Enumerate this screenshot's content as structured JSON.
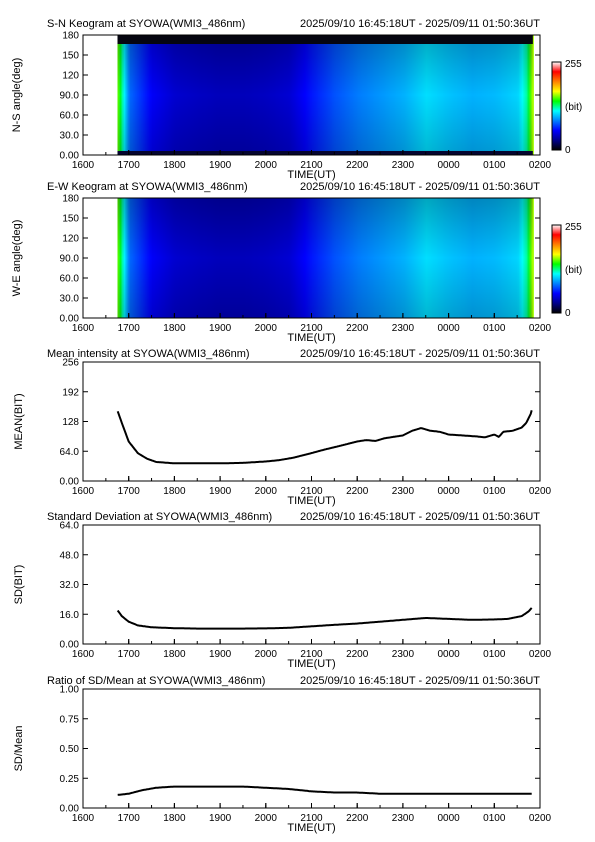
{
  "time_range_text": "2025/09/10 16:45:18UT - 2025/09/11 01:50:36UT",
  "x_axis": {
    "label": "TIME(UT)",
    "ticks": [
      "1600",
      "1700",
      "1800",
      "1900",
      "2000",
      "2100",
      "2200",
      "2300",
      "0000",
      "0100",
      "0200"
    ],
    "range_hours": [
      16.0,
      26.0
    ],
    "data_start_hours": 16.755,
    "data_end_hours": 25.843
  },
  "colorbar": {
    "min_label": "0",
    "max_label": "255",
    "unit_label": "(bit)",
    "colors": [
      "#000000",
      "#00008b",
      "#0000ff",
      "#0080ff",
      "#00ffff",
      "#00ff00",
      "#ffff00",
      "#ff8000",
      "#ff0000",
      "#ffffff"
    ]
  },
  "keograms": [
    {
      "title": "S-N Keogram at SYOWA(WMI3_486nm)",
      "ylabel": "N-S angle(deg)",
      "yticks": [
        "0.00",
        "30.0",
        "60.0",
        "90.0",
        "120",
        "150",
        "180"
      ],
      "yrange": [
        0,
        180
      ],
      "dark_top_band": true
    },
    {
      "title": "E-W Keogram at SYOWA(WMI3_486nm)",
      "ylabel": "W-E angle(deg)",
      "yticks": [
        "0.00",
        "30.0",
        "60.0",
        "90.0",
        "120",
        "150",
        "180"
      ],
      "yrange": [
        0,
        180
      ],
      "dark_top_band": false
    }
  ],
  "line_panels": [
    {
      "title": "Mean intensity at SYOWA(WMI3_486nm)",
      "ylabel": "MEAN(BIT)",
      "yticks": [
        "0.00",
        "64.0",
        "128",
        "192",
        "256"
      ],
      "yrange": [
        0,
        256
      ]
    },
    {
      "title": "Standard Deviation at SYOWA(WMI3_486nm)",
      "ylabel": "SD(BIT)",
      "yticks": [
        "0.00",
        "16.0",
        "32.0",
        "48.0",
        "64.0"
      ],
      "yrange": [
        0,
        64
      ]
    },
    {
      "title": "Ratio of SD/Mean at SYOWA(WMI3_486nm)",
      "ylabel": "SD/Mean",
      "yticks": [
        "0.00",
        "0.25",
        "0.50",
        "0.75",
        "1.00"
      ],
      "yrange": [
        0,
        1
      ]
    }
  ],
  "chart_data": [
    {
      "type": "heatmap",
      "title": "S-N Keogram at SYOWA(WMI3_486nm)",
      "xlabel": "TIME(UT)",
      "ylabel": "N-S angle(deg)",
      "xlim_hours": [
        16.0,
        26.0
      ],
      "ylim": [
        0,
        180
      ],
      "color_scale": [
        0,
        255
      ],
      "x_hours": [
        16.76,
        16.85,
        17.0,
        17.5,
        18.0,
        18.5,
        19.0,
        19.5,
        20.0,
        20.5,
        21.0,
        21.5,
        22.0,
        22.5,
        23.0,
        23.5,
        24.0,
        24.5,
        25.0,
        25.5,
        25.7,
        25.8
      ],
      "intensity_bit": [
        150,
        120,
        80,
        55,
        45,
        42,
        40,
        40,
        42,
        46,
        62,
        75,
        84,
        90,
        96,
        106,
        100,
        96,
        98,
        104,
        125,
        160
      ]
    },
    {
      "type": "heatmap",
      "title": "E-W Keogram at SYOWA(WMI3_486nm)",
      "xlabel": "TIME(UT)",
      "ylabel": "W-E angle(deg)",
      "xlim_hours": [
        16.0,
        26.0
      ],
      "ylim": [
        0,
        180
      ],
      "color_scale": [
        0,
        255
      ],
      "x_hours": [
        16.76,
        16.85,
        17.0,
        17.5,
        18.0,
        18.5,
        19.0,
        19.5,
        20.0,
        20.5,
        21.0,
        21.5,
        22.0,
        22.5,
        23.0,
        23.5,
        24.0,
        24.5,
        25.0,
        25.5,
        25.7,
        25.8
      ],
      "intensity_bit": [
        150,
        120,
        80,
        55,
        45,
        42,
        40,
        40,
        42,
        46,
        62,
        75,
        84,
        90,
        96,
        106,
        100,
        96,
        98,
        104,
        125,
        160
      ]
    },
    {
      "type": "line",
      "title": "Mean intensity at SYOWA(WMI3_486nm)",
      "xlabel": "TIME(UT)",
      "ylabel": "MEAN(BIT)",
      "xlim_hours": [
        16.0,
        26.0
      ],
      "ylim": [
        0,
        256
      ],
      "x_hours": [
        16.76,
        16.85,
        17.0,
        17.2,
        17.4,
        17.6,
        18.0,
        18.5,
        19.0,
        19.5,
        20.0,
        20.3,
        20.6,
        21.0,
        21.3,
        21.6,
        22.0,
        22.2,
        22.4,
        22.6,
        22.8,
        23.0,
        23.2,
        23.4,
        23.6,
        23.8,
        24.0,
        24.3,
        24.6,
        24.8,
        25.0,
        25.1,
        25.2,
        25.4,
        25.6,
        25.7,
        25.8,
        25.84
      ],
      "values": [
        150,
        125,
        85,
        60,
        48,
        41,
        38,
        38,
        38,
        39,
        42,
        45,
        50,
        60,
        68,
        75,
        85,
        88,
        86,
        92,
        95,
        98,
        108,
        114,
        108,
        106,
        100,
        98,
        96,
        94,
        100,
        95,
        106,
        108,
        115,
        125,
        145,
        160
      ]
    },
    {
      "type": "line",
      "title": "Standard Deviation at SYOWA(WMI3_486nm)",
      "xlabel": "TIME(UT)",
      "ylabel": "SD(BIT)",
      "xlim_hours": [
        16.0,
        26.0
      ],
      "ylim": [
        0,
        64
      ],
      "x_hours": [
        16.76,
        16.85,
        17.0,
        17.2,
        17.5,
        18.0,
        18.5,
        19.0,
        19.5,
        20.0,
        20.5,
        21.0,
        21.5,
        22.0,
        22.5,
        23.0,
        23.5,
        24.0,
        24.5,
        25.0,
        25.3,
        25.6,
        25.75,
        25.84
      ],
      "values": [
        18,
        15,
        12,
        10,
        9,
        8.5,
        8.3,
        8.3,
        8.3,
        8.4,
        8.7,
        9.5,
        10.3,
        11,
        12,
        13,
        14,
        13.5,
        13,
        13.2,
        13.5,
        15,
        17.5,
        20
      ]
    },
    {
      "type": "line",
      "title": "Ratio of SD/Mean at SYOWA(WMI3_486nm)",
      "xlabel": "TIME(UT)",
      "ylabel": "SD/Mean",
      "xlim_hours": [
        16.0,
        26.0
      ],
      "ylim": [
        0,
        1
      ],
      "x_hours": [
        16.76,
        17.0,
        17.3,
        17.6,
        18.0,
        18.5,
        19.0,
        19.5,
        20.0,
        20.5,
        21.0,
        21.5,
        22.0,
        22.5,
        23.0,
        23.5,
        24.0,
        24.5,
        25.0,
        25.5,
        25.84
      ],
      "values": [
        0.11,
        0.12,
        0.15,
        0.17,
        0.18,
        0.18,
        0.18,
        0.18,
        0.17,
        0.16,
        0.14,
        0.13,
        0.13,
        0.12,
        0.12,
        0.12,
        0.12,
        0.12,
        0.12,
        0.12,
        0.12
      ]
    }
  ]
}
